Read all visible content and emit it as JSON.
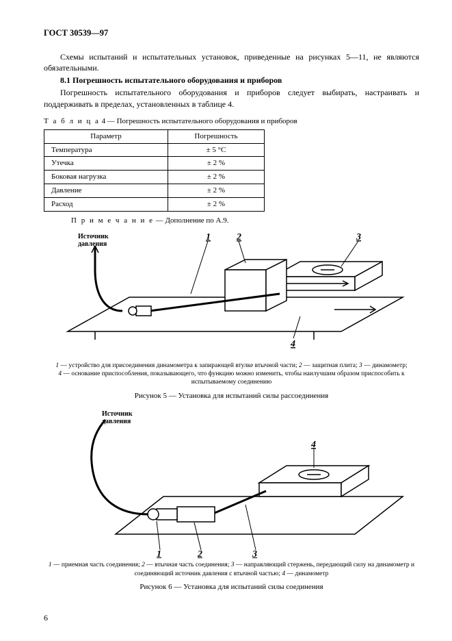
{
  "header": "ГОСТ 30539—97",
  "p1": "Схемы испытаний и испытательных установок, приведенные на рисунках 5—11, не являются обязательными.",
  "p2_num": "8.1",
  "p2_title": "Погрешность испытательного оборудования и приборов",
  "p3": "Погрешность испытательного оборудования и приборов следует выбирать, настраивать и поддерживать в пределах, установленных в таблице 4.",
  "table_title_prefix": "Т а б л и ц а",
  "table_title": "4 — Погрешность испытательного оборудования и приборов",
  "table": {
    "head_param": "Параметр",
    "head_err": "Погрешность",
    "rows": [
      {
        "param": "Температура",
        "err": "± 5 °C"
      },
      {
        "param": "Утечка",
        "err": "± 2 %"
      },
      {
        "param": "Боковая нагрузка",
        "err": "± 2 %"
      },
      {
        "param": "Давление",
        "err": "± 2 %"
      },
      {
        "param": "Расход",
        "err": "± 2 %"
      }
    ]
  },
  "note_prefix": "П р и м е ч а н и е",
  "note": "— Дополнение по А.9.",
  "fig5": {
    "source_label": "Источник\nдавления",
    "labels": {
      "l1": "1",
      "l2": "2",
      "l3": "3",
      "l4": "4"
    },
    "legend_html": "<em>1</em> — устройство для присоединения динамометра к запирающей втулке втычной части; <em>2</em> — защитная плита; <em>3</em> — динамометр;<br><em>4</em> — основание приспособления, показывающего, что функцию можно изменить, чтобы наилучшим образом приспособить к испытываемому соединению",
    "caption": "Рисунок 5 — Установка для испытаний силы рассоединения"
  },
  "fig6": {
    "source_label": "Источник\nдавления",
    "labels": {
      "l1": "1",
      "l2": "2",
      "l3": "3",
      "l4": "4"
    },
    "legend_html": "<em>1</em> — приемная часть соединения; <em>2</em> — втычная часть соединения; <em>3</em> — направляющий стержень, передающий силу на динамометр и соединяющий источник давления с втычной частью; <em>4</em> — динамометр",
    "caption": "Рисунок 6 — Установка для испытаний силы соединения"
  },
  "pagenum": "6",
  "style": {
    "stroke": "#000000",
    "fill_none": "none",
    "fill_white": "#ffffff"
  }
}
